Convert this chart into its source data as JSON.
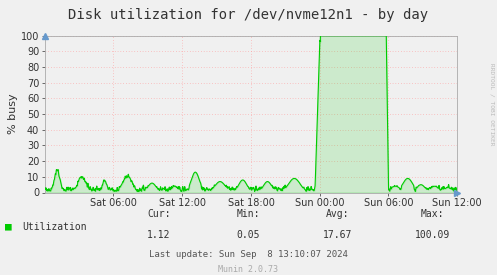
{
  "title": "Disk utilization for /dev/nvme12n1 - by day",
  "ylabel": "% busy",
  "line_color": "#00cc00",
  "fill_color": "#00cc00",
  "fill_alpha": 0.15,
  "bg_color": "#f0f0f0",
  "plot_bg_color": "#f0f0f0",
  "grid_h_color": "#ff9999",
  "grid_v_color": "#ff9999",
  "xlim": [
    0,
    1
  ],
  "ylim": [
    0,
    100
  ],
  "yticks": [
    0,
    10,
    20,
    30,
    40,
    50,
    60,
    70,
    80,
    90,
    100
  ],
  "xtick_labels": [
    "Sat 06:00",
    "Sat 12:00",
    "Sat 18:00",
    "Sun 00:00",
    "Sun 06:00",
    "Sun 12:00"
  ],
  "xtick_positions": [
    0.1667,
    0.3333,
    0.5,
    0.6667,
    0.8333,
    1.0
  ],
  "legend_label": "Utilization",
  "stats_cur_label": "Cur:",
  "stats_min_label": "Min:",
  "stats_avg_label": "Avg:",
  "stats_max_label": "Max:",
  "stats_cur": "1.12",
  "stats_min": "0.05",
  "stats_avg": "17.67",
  "stats_max": "100.09",
  "last_update": "Last update: Sun Sep  8 13:10:07 2024",
  "munin_version": "Munin 2.0.73",
  "rrdtool_label": "RRDTOOL / TOBI OETIKER",
  "title_fontsize": 10,
  "axis_fontsize": 7,
  "stats_fontsize": 7,
  "legend_fontsize": 7
}
